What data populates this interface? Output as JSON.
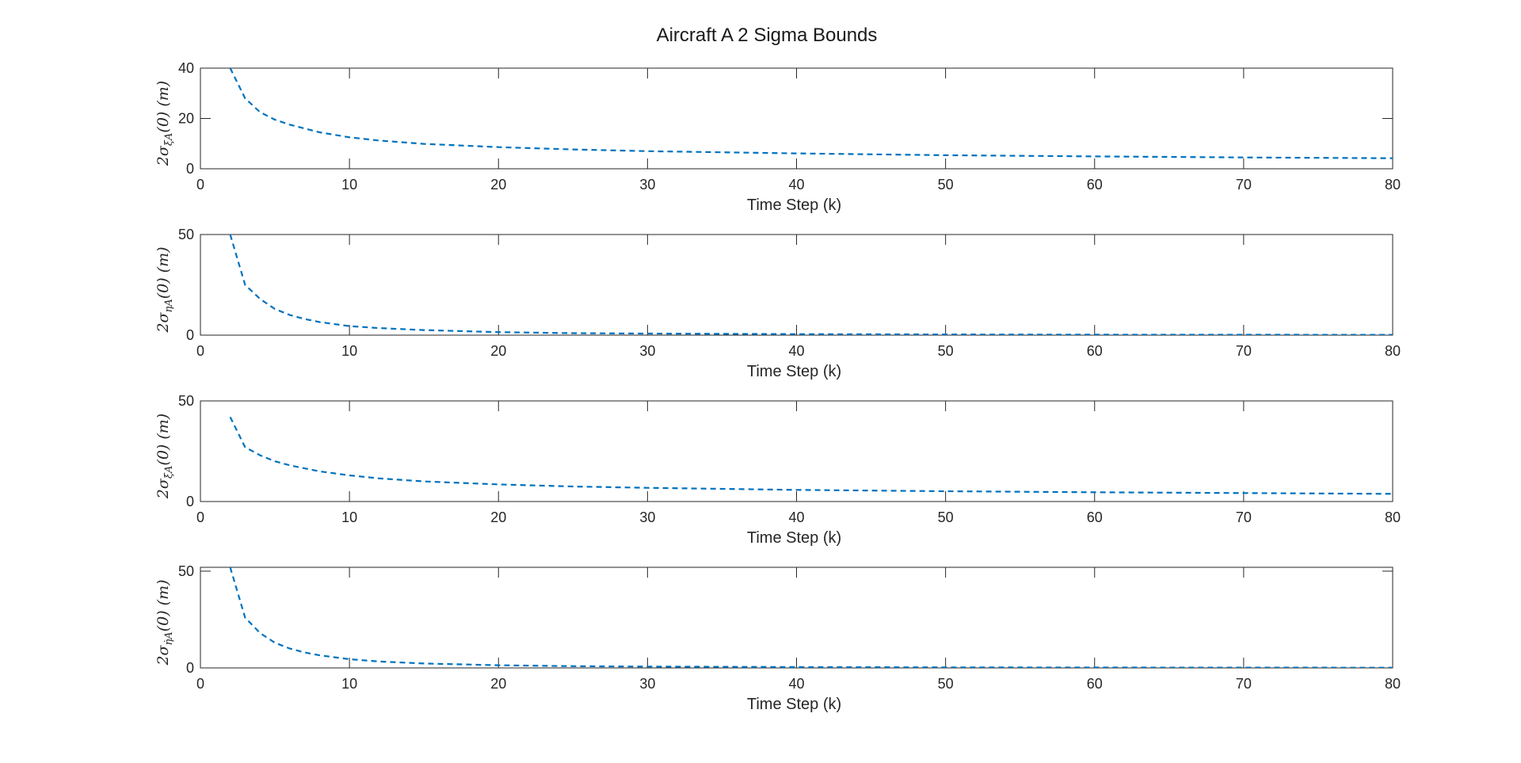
{
  "figure": {
    "title": "Aircraft A 2 Sigma Bounds"
  },
  "colors": {
    "series": "#0072BD",
    "axes": "#262626"
  },
  "chart_data": [
    {
      "type": "line",
      "ylabel": {
        "prefix": "2σ",
        "sub": "ξA",
        "suffix": "(0) (m)"
      },
      "xlabel": "Time Step (k)",
      "xlim": [
        0,
        80
      ],
      "ylim": [
        0,
        40
      ],
      "xticks": [
        0,
        10,
        20,
        30,
        40,
        50,
        60,
        70,
        80
      ],
      "yticks": [
        0,
        20,
        40
      ],
      "grid": false,
      "series": [
        {
          "style": "dashed",
          "x": [
            2,
            3,
            4,
            5,
            6,
            8,
            10,
            12,
            15,
            20,
            25,
            30,
            40,
            50,
            60,
            70,
            80
          ],
          "y": [
            40,
            28,
            22.5,
            19.5,
            17.5,
            14.5,
            12.5,
            11.2,
            9.9,
            8.6,
            7.7,
            7.0,
            6.1,
            5.4,
            4.9,
            4.5,
            4.2
          ]
        }
      ]
    },
    {
      "type": "line",
      "ylabel": {
        "prefix": "2σ",
        "sub": "ηA",
        "suffix": "(0) (m)"
      },
      "xlabel": "Time Step (k)",
      "xlim": [
        0,
        80
      ],
      "ylim": [
        0,
        50
      ],
      "xticks": [
        0,
        10,
        20,
        30,
        40,
        50,
        60,
        70,
        80
      ],
      "yticks": [
        0,
        50
      ],
      "grid": false,
      "series": [
        {
          "style": "dashed",
          "x": [
            2,
            3,
            4,
            5,
            6,
            7,
            8,
            10,
            12,
            15,
            20,
            25,
            30,
            40,
            50,
            60,
            70,
            80
          ],
          "y": [
            50,
            25,
            18,
            13,
            10,
            8,
            6.5,
            4.5,
            3.5,
            2.5,
            1.5,
            1.0,
            0.8,
            0.5,
            0.35,
            0.25,
            0.2,
            0.15
          ]
        }
      ]
    },
    {
      "type": "line",
      "ylabel": {
        "prefix": "2σ",
        "sub": "ξ̇A",
        "suffix": "(0) (m)"
      },
      "xlabel": "Time Step (k)",
      "xlim": [
        0,
        80
      ],
      "ylim": [
        0,
        50
      ],
      "xticks": [
        0,
        10,
        20,
        30,
        40,
        50,
        60,
        70,
        80
      ],
      "yticks": [
        0,
        50
      ],
      "grid": false,
      "series": [
        {
          "style": "dashed",
          "x": [
            2,
            3,
            4,
            5,
            6,
            8,
            10,
            12,
            15,
            20,
            25,
            30,
            40,
            50,
            60,
            70,
            80
          ],
          "y": [
            42,
            27,
            23,
            20,
            18,
            15,
            13,
            11.5,
            10,
            8.5,
            7.5,
            6.8,
            5.8,
            5.1,
            4.6,
            4.2,
            3.8
          ]
        }
      ]
    },
    {
      "type": "line",
      "ylabel": {
        "prefix": "2σ",
        "sub": "η̇A",
        "suffix": "(0) (m)"
      },
      "xlabel": "Time Step (k)",
      "xlim": [
        0,
        80
      ],
      "ylim": [
        0,
        52
      ],
      "xticks": [
        0,
        10,
        20,
        30,
        40,
        50,
        60,
        70,
        80
      ],
      "yticks": [
        0,
        50
      ],
      "grid": false,
      "series": [
        {
          "style": "dashed",
          "x": [
            2,
            3,
            4,
            5,
            6,
            7,
            8,
            10,
            12,
            15,
            20,
            25,
            30,
            40,
            50,
            60,
            70,
            80
          ],
          "y": [
            52,
            26,
            18,
            13,
            10,
            8,
            6.5,
            4.5,
            3.3,
            2.3,
            1.4,
            0.9,
            0.7,
            0.45,
            0.3,
            0.22,
            0.18,
            0.12
          ]
        }
      ]
    }
  ]
}
